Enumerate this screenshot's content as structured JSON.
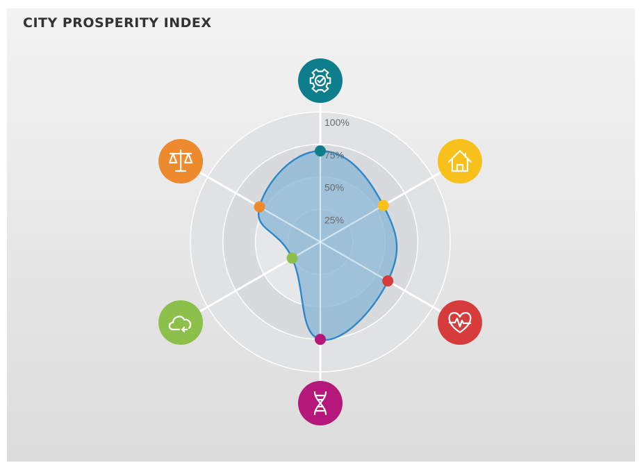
{
  "title": "CITY PROSPERITY INDEX",
  "chart_data": {
    "type": "radar",
    "title": "CITY PROSPERITY INDEX",
    "scale_max": 100,
    "ticks": [
      {
        "value": 25,
        "label": "25%"
      },
      {
        "value": 50,
        "label": "50%"
      },
      {
        "value": 75,
        "label": "75%"
      },
      {
        "value": 100,
        "label": "100%"
      }
    ],
    "axes": [
      {
        "icon": "gear-check-icon",
        "color": "#0e7d8c",
        "value": 70
      },
      {
        "icon": "house-icon",
        "color": "#f8c01a",
        "value": 56
      },
      {
        "icon": "heart-pulse-icon",
        "color": "#d63c3c",
        "value": 60
      },
      {
        "icon": "dna-icon",
        "color": "#b5177a",
        "value": 75
      },
      {
        "icon": "cloud-icon",
        "color": "#8cc04a",
        "value": 25
      },
      {
        "icon": "scales-icon",
        "color": "#ed8a2e",
        "value": 54
      }
    ],
    "area_fill": "#8ab7d6",
    "area_stroke": "#2e86c8"
  }
}
